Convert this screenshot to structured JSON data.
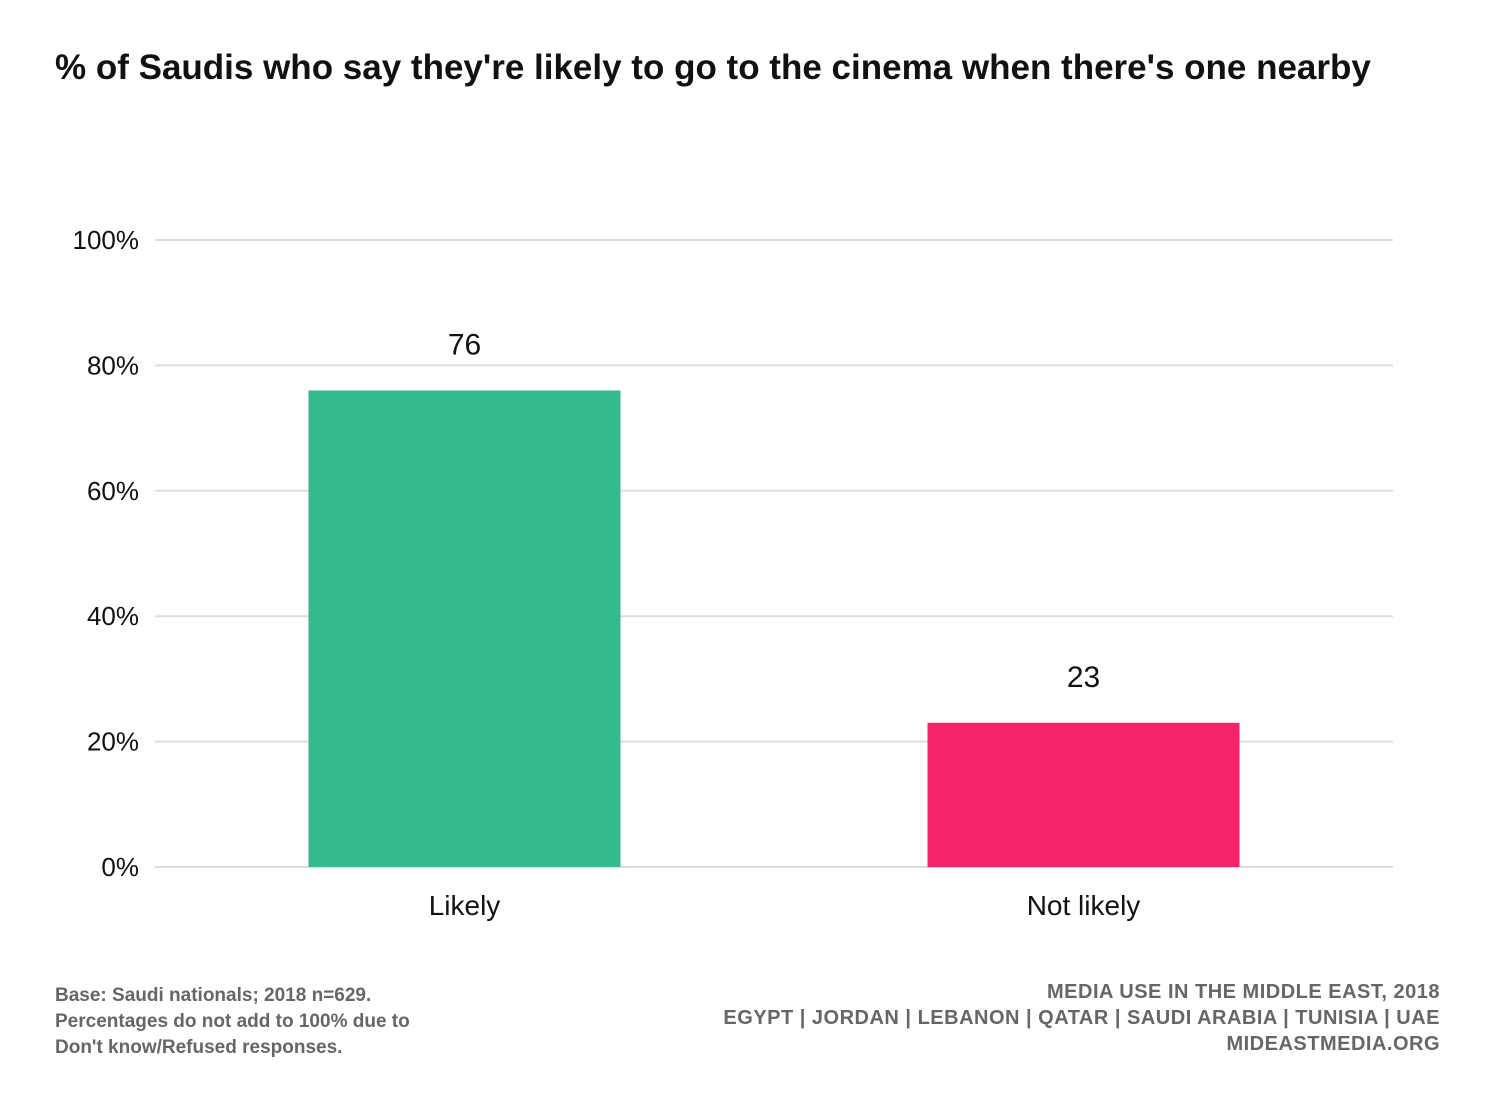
{
  "chart_data": {
    "type": "bar",
    "title": "% of Saudis who say they're likely to go to the cinema when there's one nearby",
    "categories": [
      "Likely",
      "Not likely"
    ],
    "values": [
      76,
      23
    ],
    "data_labels": [
      "76",
      "23"
    ],
    "colors": [
      "#34BA8C",
      "#F5246A"
    ],
    "ylim": [
      0,
      100
    ],
    "yticks": [
      0,
      20,
      40,
      60,
      80,
      100
    ],
    "ytick_labels": [
      "0%",
      "20%",
      "40%",
      "60%",
      "80%",
      "100%"
    ],
    "grid": true,
    "xlabel": "",
    "ylabel": ""
  },
  "footnote": {
    "lines": [
      "Base: Saudi nationals; 2018 n=629.",
      "Percentages do not add to 100% due to",
      "Don't know/Refused responses."
    ]
  },
  "source": {
    "lines": [
      "MEDIA USE IN THE MIDDLE EAST, 2018",
      "EGYPT | JORDAN | LEBANON | QATAR | SAUDI ARABIA | TUNISIA | UAE",
      "MIDEASTMEDIA.ORG"
    ]
  }
}
